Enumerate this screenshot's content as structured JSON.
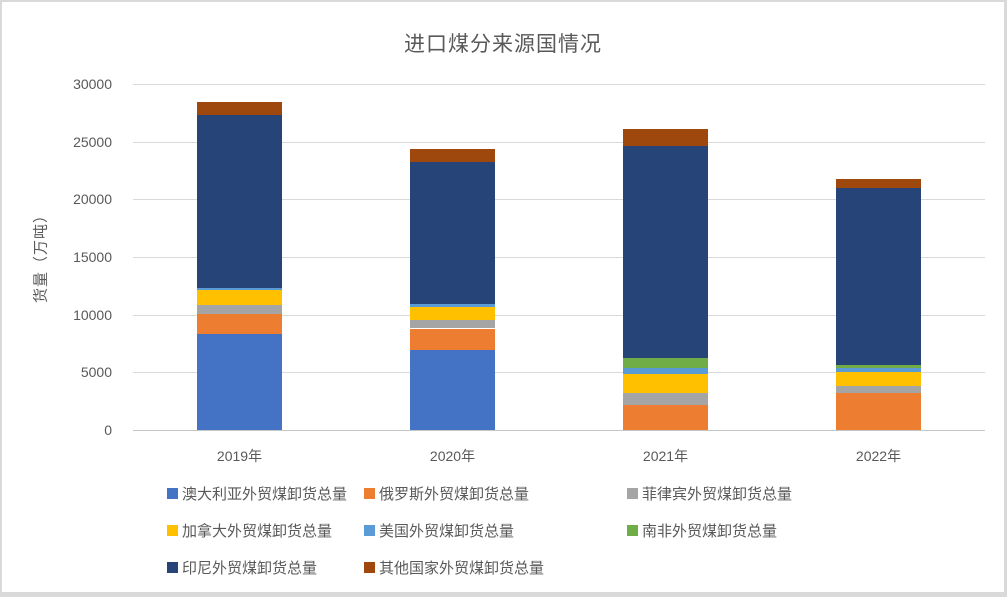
{
  "window": {
    "background": "#ffffff",
    "border_color": "#d9d9d9"
  },
  "chart_data": {
    "type": "bar",
    "stacked": true,
    "title": "进口煤分来源国情况",
    "ylabel": "货量（万吨）",
    "xlabel": "",
    "categories": [
      "2019年",
      "2020年",
      "2021年",
      "2022年"
    ],
    "series": [
      {
        "name": "澳大利亚外贸煤卸货总量",
        "color": "#4472C4",
        "values": [
          8300,
          6900,
          0,
          0
        ]
      },
      {
        "name": "俄罗斯外贸煤卸货总量",
        "color": "#ED7D31",
        "values": [
          1750,
          1900,
          2200,
          3200
        ]
      },
      {
        "name": "菲律宾外贸煤卸货总量",
        "color": "#A5A5A5",
        "values": [
          800,
          750,
          1000,
          600
        ]
      },
      {
        "name": "加拿大外贸煤卸货总量",
        "color": "#FFC000",
        "values": [
          1300,
          1100,
          1650,
          1200
        ]
      },
      {
        "name": "美国外贸煤卸货总量",
        "color": "#5B9BD5",
        "values": [
          200,
          250,
          500,
          400
        ]
      },
      {
        "name": "南非外贸煤卸货总量",
        "color": "#70AD47",
        "values": [
          0,
          0,
          900,
          200
        ]
      },
      {
        "name": "印尼外贸煤卸货总量",
        "color": "#264478",
        "values": [
          15000,
          12300,
          18400,
          15400
        ]
      },
      {
        "name": "其他国家外贸煤卸货总量",
        "color": "#9E480E",
        "values": [
          1100,
          1150,
          1450,
          800
        ]
      }
    ],
    "ylim": [
      0,
      30000
    ],
    "ytick_step": 5000,
    "ytick_labels": [
      "0",
      "5000",
      "10000",
      "15000",
      "20000",
      "25000",
      "30000"
    ],
    "grid": true,
    "legend_position": "bottom",
    "legend_rows": [
      3,
      3,
      2
    ],
    "text_color": "#595959",
    "gridline_color": "#D9D9D9"
  }
}
